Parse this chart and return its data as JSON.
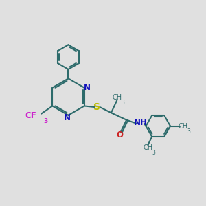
{
  "bg_color": "#e0e0e0",
  "bond_color": "#2d6b6b",
  "N_color": "#1111bb",
  "O_color": "#cc2222",
  "S_color": "#bbbb00",
  "F_color": "#cc22cc",
  "line_width": 1.5,
  "font_size": 8.5,
  "xlim": [
    0,
    10
  ],
  "ylim": [
    0,
    10
  ]
}
